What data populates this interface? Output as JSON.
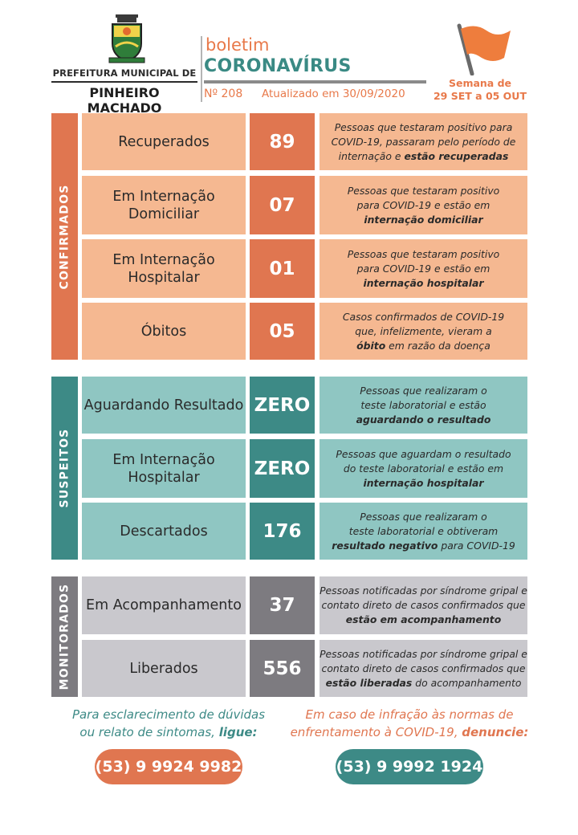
{
  "header": {
    "prefeitura_line1": "PREFEITURA MUNICIPAL DE",
    "prefeitura_line2": "PINHEIRO MACHADO",
    "boletim": "boletim",
    "title": "CORONAVÍRUS",
    "number": "Nº 208",
    "updated": "Atualizado em 30/09/2020",
    "week_line1": "Semana de",
    "week_line2": "29 SET a 05 OUT",
    "icons": {
      "coat_of_arms": "coat-of-arms-icon",
      "flag": "flag-icon"
    }
  },
  "colors": {
    "orange_dark": "#e07650",
    "orange_light": "#f5b891",
    "teal_dark": "#3d8a86",
    "teal_light": "#8fc6c2",
    "gray_dark": "#7d7b80",
    "gray_light": "#c9c8cd"
  },
  "sections": {
    "confirmados": {
      "label": "CONFIRMADOS",
      "rows": [
        {
          "label": "Recuperados",
          "value": "89",
          "desc": [
            "Pessoas que testaram positivo para",
            "COVID-19, passaram pelo período de",
            "internação e "
          ],
          "desc_bold": "estão recuperadas",
          "desc_after": ""
        },
        {
          "label": "Em Internação Domiciliar",
          "value": "07",
          "desc": [
            "Pessoas que testaram positivo",
            "para COVID-19 e estão em",
            ""
          ],
          "desc_bold": "internação domiciliar",
          "desc_after": ""
        },
        {
          "label": "Em Internação Hospitalar",
          "value": "01",
          "desc": [
            "Pessoas que testaram positivo",
            "para COVID-19 e estão em",
            ""
          ],
          "desc_bold": "internação hospitalar",
          "desc_after": ""
        },
        {
          "label": "Óbitos",
          "value": "05",
          "desc": [
            "Casos confirmados de COVID-19",
            "que, infelizmente, vieram a",
            ""
          ],
          "desc_bold": "óbito",
          "desc_after": " em razão da doença"
        }
      ]
    },
    "suspeitos": {
      "label": "SUSPEITOS",
      "rows": [
        {
          "label": "Aguardando Resultado",
          "value": "ZERO",
          "desc": [
            "Pessoas que realizaram o",
            "teste laboratorial e estão",
            ""
          ],
          "desc_bold": "aguardando o resultado",
          "desc_after": ""
        },
        {
          "label": "Em Internação Hospitalar",
          "value": "ZERO",
          "desc": [
            "Pessoas que aguardam o resultado",
            "do teste laboratorial e estão em",
            ""
          ],
          "desc_bold": "internação hospitalar",
          "desc_after": ""
        },
        {
          "label": "Descartados",
          "value": "176",
          "desc": [
            "Pessoas que realizaram o",
            "teste laboratorial e obtiveram",
            ""
          ],
          "desc_bold": "resultado negativo",
          "desc_after": " para COVID-19"
        }
      ]
    },
    "monitorados": {
      "label": "MONITORADOS",
      "rows": [
        {
          "label": "Em Acompanhamento",
          "value": "37",
          "desc": [
            "Pessoas notificadas por síndrome gripal e",
            "contato direto de casos confirmados que",
            ""
          ],
          "desc_bold": "estão em acompanhamento",
          "desc_after": ""
        },
        {
          "label": "Liberados",
          "value": "556",
          "desc": [
            "Pessoas notificadas por síndrome gripal e",
            "contato direto de casos confirmados que",
            ""
          ],
          "desc_bold": "estão liberadas",
          "desc_after": " do acompanhamento"
        }
      ]
    }
  },
  "footer": {
    "left_line1": "Para esclarecimento de dúvidas",
    "left_line2": "ou relato de sintomas, ",
    "left_bold": "ligue:",
    "left_phone": "(53) 9 9924 9982",
    "right_line1": "Em caso de infração às normas de",
    "right_line2": "enfrentamento à COVID-19, ",
    "right_bold": "denuncie:",
    "right_phone": "(53) 9 9992 1924"
  }
}
